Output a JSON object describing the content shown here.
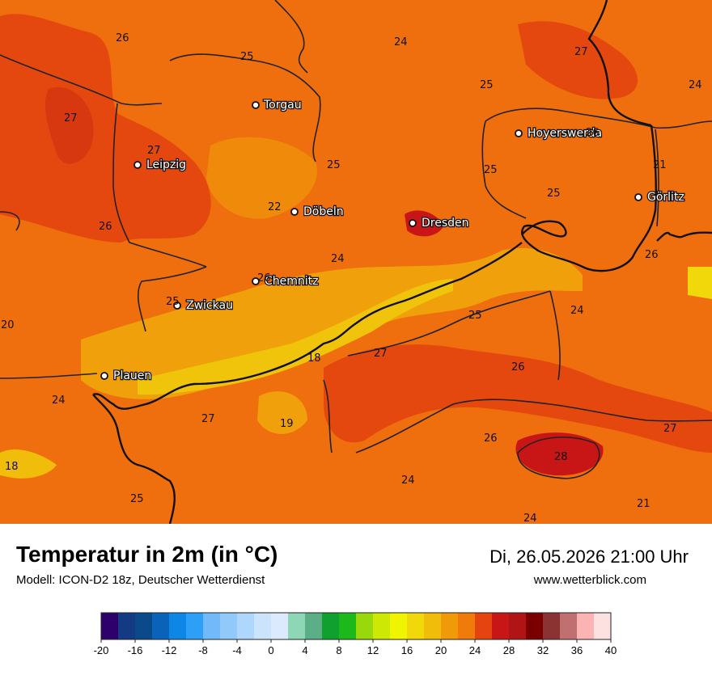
{
  "header": {
    "title": "Temperatur in 2m (in °C)",
    "model": "Modell: ICON-D2 18z, Deutscher Wetterdienst",
    "datetime": "Di, 26.05.2026 21:00 Uhr",
    "website": "www.wetterblick.com"
  },
  "cities": [
    {
      "name": "Torgau",
      "dot": "city-dot"
    },
    {
      "name": "Hoyerswerda",
      "dot": "city-dot"
    },
    {
      "name": "Leipzig",
      "dot": "city-dot"
    },
    {
      "name": "Görlitz",
      "dot": "city-dot"
    },
    {
      "name": "Döbeln",
      "dot": "city-dot"
    },
    {
      "name": "Dresden",
      "dot": "city-dot"
    },
    {
      "name": "Chemnitz",
      "dot": "city-dot"
    },
    {
      "name": "Zwickau",
      "dot": "city-dot"
    },
    {
      "name": "Plauen",
      "dot": "city-dot"
    }
  ],
  "temperature_labels": [
    "26",
    "25",
    "24",
    "27",
    "25",
    "24",
    "27",
    "27",
    "26",
    "25",
    "21",
    "25",
    "25",
    "22",
    "26",
    "24",
    "26",
    "26",
    "25",
    "24",
    "20",
    "25",
    "18",
    "27",
    "26",
    "24",
    "27",
    "19",
    "26",
    "27",
    "18",
    "28",
    "24",
    "25",
    "21",
    "24"
  ],
  "legend": {
    "ticks": [
      "-20",
      "-16",
      "-12",
      "-8",
      "-4",
      "0",
      "4",
      "8",
      "12",
      "16",
      "20",
      "24",
      "28",
      "32",
      "36",
      "40"
    ],
    "colors": [
      "#2d006b",
      "#133a82",
      "#0b4a8a",
      "#0a63b8",
      "#0d86e6",
      "#2e9ff7",
      "#71b9f9",
      "#91c9fa",
      "#afd6fb",
      "#cce3fc",
      "#dbeafc",
      "#8ed7b6",
      "#5cae86",
      "#10a02f",
      "#1db91b",
      "#99d80b",
      "#cde804",
      "#f0f400",
      "#f0d80a",
      "#f0bd0b",
      "#f09a0a",
      "#f07a0a",
      "#e5430f",
      "#c81616",
      "#b01414",
      "#7a0000",
      "#8b3333",
      "#c07070",
      "#fbb3b3",
      "#fde0e0"
    ]
  }
}
